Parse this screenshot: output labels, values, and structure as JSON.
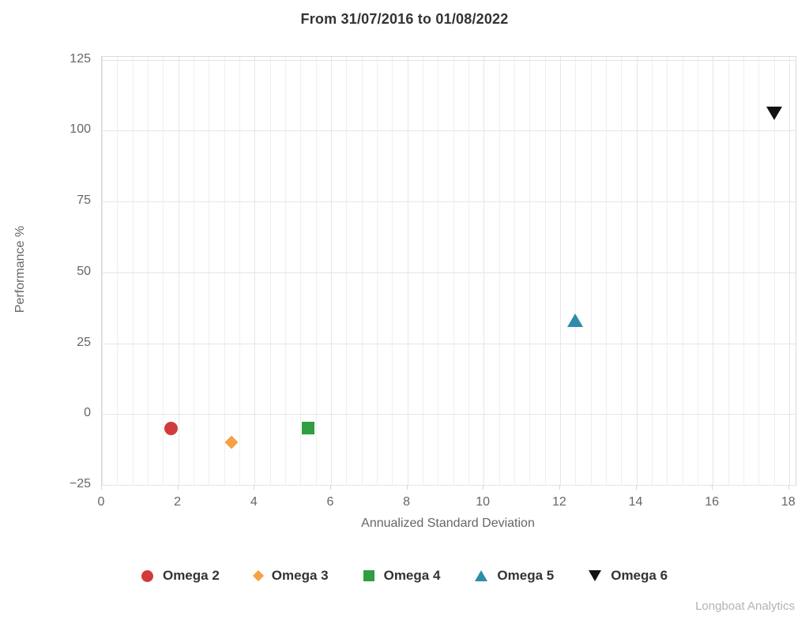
{
  "title": "From 31/07/2016 to 01/08/2022",
  "credits": "Longboat Analytics",
  "colors": {
    "title_text": "#333333",
    "axis_text": "#666666",
    "legend_text": "#333333",
    "credits_text": "#b3b3b3",
    "grid_major": "#e6e6e6",
    "grid_minor": "#efefef",
    "axis_line": "#ccd6eb",
    "plot_border": "#dadada"
  },
  "chart_data": {
    "type": "scatter",
    "title": "From 31/07/2016 to 01/08/2022",
    "xlabel": "Annualized Standard Deviation",
    "ylabel": "Performance %",
    "xlim": [
      0,
      18.17
    ],
    "ylim": [
      -25,
      126
    ],
    "x_ticks": [
      0,
      2,
      4,
      6,
      8,
      10,
      12,
      14,
      16,
      18
    ],
    "x_tick_labels": [
      "0",
      "2",
      "4",
      "6",
      "8",
      "10",
      "12",
      "14",
      "16",
      "18"
    ],
    "x_minor_step": 0.4,
    "y_ticks": [
      -25,
      0,
      25,
      50,
      75,
      100,
      125
    ],
    "y_tick_labels": [
      "−25",
      "0",
      "25",
      "50",
      "75",
      "100",
      "125"
    ],
    "grid": true,
    "legend_position": "bottom",
    "series": [
      {
        "name": "Omega 2",
        "marker": "circle",
        "color": "#d23b3c",
        "points": [
          [
            1.8,
            -5
          ]
        ]
      },
      {
        "name": "Omega 3",
        "marker": "diamond",
        "color": "#f7a046",
        "points": [
          [
            3.4,
            -10
          ]
        ]
      },
      {
        "name": "Omega 4",
        "marker": "square",
        "color": "#2f9e41",
        "points": [
          [
            5.4,
            -5
          ]
        ]
      },
      {
        "name": "Omega 5",
        "marker": "triangle-up",
        "color": "#2e8cab",
        "points": [
          [
            12.4,
            33
          ]
        ]
      },
      {
        "name": "Omega 6",
        "marker": "triangle-down",
        "color": "#111111",
        "points": [
          [
            17.6,
            106
          ]
        ]
      }
    ]
  }
}
